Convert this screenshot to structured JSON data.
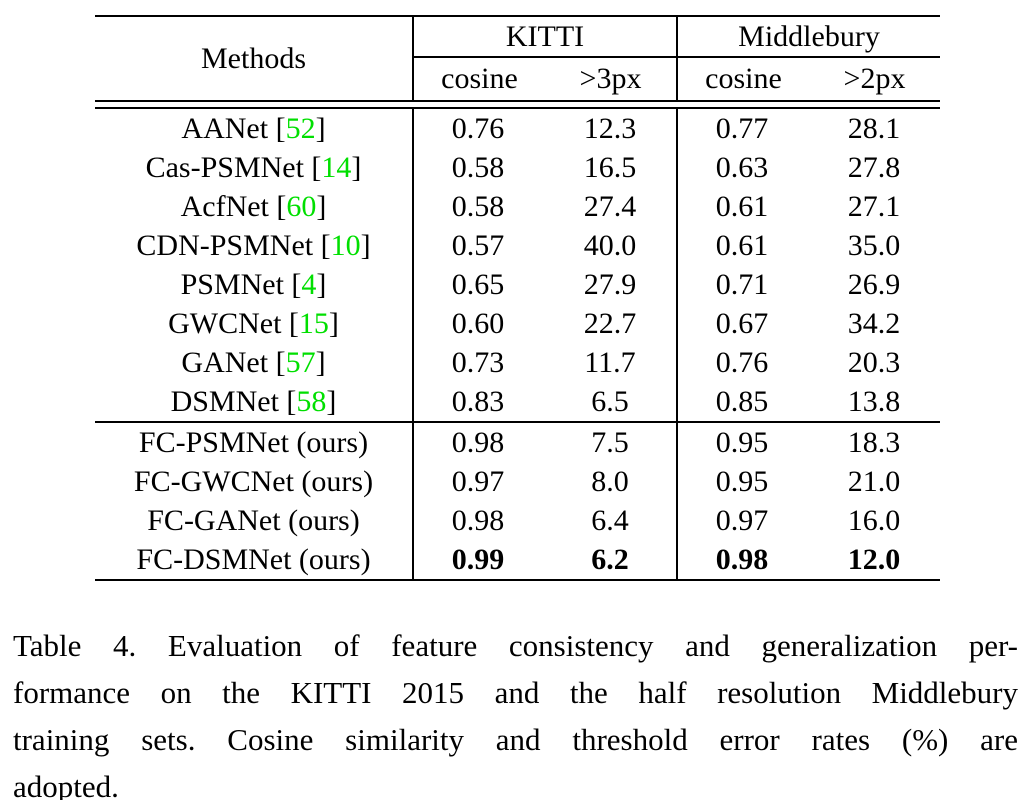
{
  "table": {
    "header": {
      "methods": "Methods",
      "groups": [
        {
          "title": "KITTI",
          "subs": [
            "cosine",
            ">3px"
          ]
        },
        {
          "title": "Middlebury",
          "subs": [
            "cosine",
            ">2px"
          ]
        }
      ]
    },
    "baseline_rows": [
      {
        "method": "AANet",
        "cite": "52",
        "values": [
          "0.76",
          "12.3",
          "0.77",
          "28.1"
        ],
        "bold": false
      },
      {
        "method": "Cas-PSMNet",
        "cite": "14",
        "values": [
          "0.58",
          "16.5",
          "0.63",
          "27.8"
        ],
        "bold": false
      },
      {
        "method": "AcfNet",
        "cite": "60",
        "values": [
          "0.58",
          "27.4",
          "0.61",
          "27.1"
        ],
        "bold": false
      },
      {
        "method": "CDN-PSMNet",
        "cite": "10",
        "values": [
          "0.57",
          "40.0",
          "0.61",
          "35.0"
        ],
        "bold": false
      },
      {
        "method": "PSMNet",
        "cite": "4",
        "values": [
          "0.65",
          "27.9",
          "0.71",
          "26.9"
        ],
        "bold": false
      },
      {
        "method": "GWCNet",
        "cite": "15",
        "values": [
          "0.60",
          "22.7",
          "0.67",
          "34.2"
        ],
        "bold": false
      },
      {
        "method": "GANet",
        "cite": "57",
        "values": [
          "0.73",
          "11.7",
          "0.76",
          "20.3"
        ],
        "bold": false
      },
      {
        "method": "DSMNet",
        "cite": "58",
        "values": [
          "0.83",
          "6.5",
          "0.85",
          "13.8"
        ],
        "bold": false
      }
    ],
    "ours_rows": [
      {
        "method": "FC-PSMNet (ours)",
        "cite": null,
        "values": [
          "0.98",
          "7.5",
          "0.95",
          "18.3"
        ],
        "bold": false
      },
      {
        "method": "FC-GWCNet (ours)",
        "cite": null,
        "values": [
          "0.97",
          "8.0",
          "0.95",
          "21.0"
        ],
        "bold": false
      },
      {
        "method": "FC-GANet (ours)",
        "cite": null,
        "values": [
          "0.98",
          "6.4",
          "0.97",
          "16.0"
        ],
        "bold": false
      },
      {
        "method": "FC-DSMNet (ours)",
        "cite": null,
        "values": [
          "0.99",
          "6.2",
          "0.98",
          "12.0"
        ],
        "bold": true
      }
    ]
  },
  "caption": {
    "lines": [
      "Table 4. Evaluation of feature consistency and generalization per-",
      "formance on the KITTI 2015 and the half resolution Middlebury",
      "training sets. Cosine similarity and threshold error rates (%) are",
      "adopted."
    ]
  },
  "colors": {
    "citation_green": "#00DF00",
    "text": "#000000",
    "background": "#ffffff"
  }
}
